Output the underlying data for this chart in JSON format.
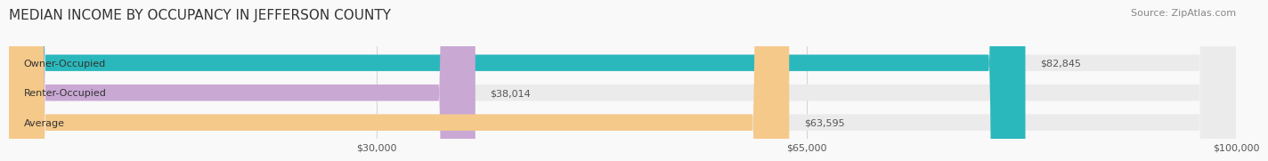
{
  "title": "MEDIAN INCOME BY OCCUPANCY IN JEFFERSON COUNTY",
  "source": "Source: ZipAtlas.com",
  "categories": [
    "Owner-Occupied",
    "Renter-Occupied",
    "Average"
  ],
  "values": [
    82845,
    38014,
    63595
  ],
  "bar_colors": [
    "#2ab8bc",
    "#c9a8d4",
    "#f5c98a"
  ],
  "bar_labels": [
    "$82,845",
    "$38,014",
    "$63,595"
  ],
  "xlim": [
    0,
    100000
  ],
  "xticks": [
    30000,
    65000,
    100000
  ],
  "xtick_labels": [
    "$30,000",
    "$65,000",
    "$100,000"
  ],
  "bg_bar_color": "#ebebeb",
  "title_fontsize": 11,
  "source_fontsize": 8,
  "bar_label_fontsize": 8,
  "cat_label_fontsize": 8,
  "tick_fontsize": 8,
  "bar_height": 0.55,
  "background_color": "#f9f9f9"
}
